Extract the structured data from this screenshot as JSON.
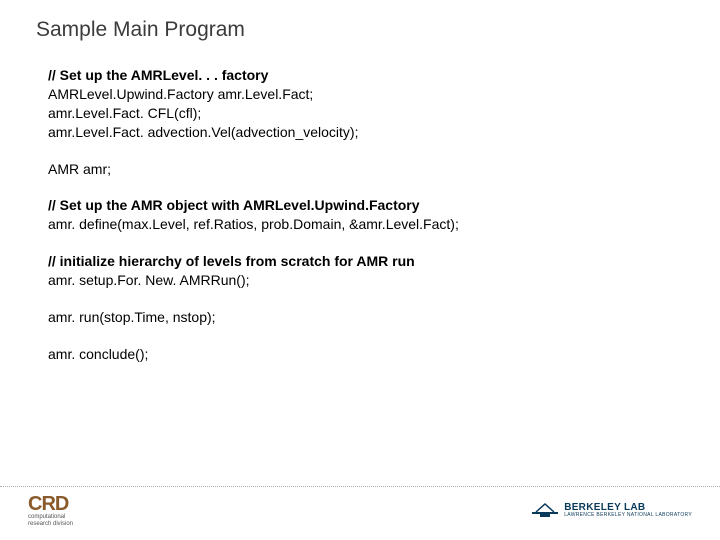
{
  "title": "Sample Main Program",
  "blocks": [
    {
      "lines": [
        {
          "text": "// Set up the AMRLevel. . . factory",
          "bold": true
        },
        {
          "text": "AMRLevel.Upwind.Factory amr.Level.Fact;",
          "bold": false
        },
        {
          "text": "amr.Level.Fact. CFL(cfl);",
          "bold": false
        },
        {
          "text": "amr.Level.Fact. advection.Vel(advection_velocity);",
          "bold": false
        }
      ]
    },
    {
      "lines": [
        {
          "text": "AMR amr;",
          "bold": false
        }
      ]
    },
    {
      "lines": [
        {
          "text": "// Set up the AMR object with AMRLevel.Upwind.Factory",
          "bold": true
        },
        {
          "text": "amr. define(max.Level, ref.Ratios, prob.Domain, &amr.Level.Fact);",
          "bold": false
        }
      ]
    },
    {
      "lines": [
        {
          "text": "// initialize hierarchy of levels from scratch for AMR run",
          "bold": true
        },
        {
          "text": "amr. setup.For. New. AMRRun();",
          "bold": false
        }
      ]
    },
    {
      "lines": [
        {
          "text": "amr. run(stop.Time, nstop);",
          "bold": false
        }
      ]
    },
    {
      "lines": [
        {
          "text": "amr. conclude();",
          "bold": false
        }
      ]
    }
  ],
  "footer": {
    "left_logo_main": "CRD",
    "left_logo_sub1": "computational",
    "left_logo_sub2": "research division",
    "right_logo_main": "BERKELEY LAB",
    "right_logo_sub": "LAWRENCE BERKELEY NATIONAL LABORATORY"
  },
  "colors": {
    "title": "#3b3b3b",
    "text": "#000000",
    "crd": "#8a5a2a",
    "lbl": "#0a3a5a",
    "divider": "#b0b0b0",
    "background": "#ffffff"
  }
}
